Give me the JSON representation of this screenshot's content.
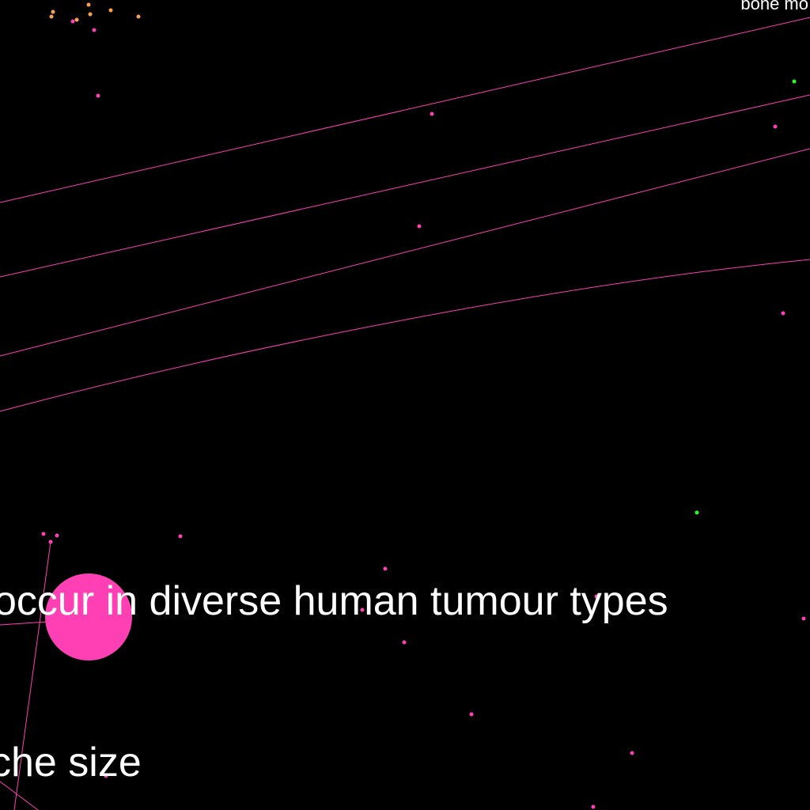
{
  "labels": {
    "corner_label": "bone mo",
    "main_phrase": "occur in diverse human tumour types",
    "lower_phrase": "che size"
  },
  "colors": {
    "background": "#000000",
    "edge": "#ff3fb4",
    "node_pink": "#ff3fb4",
    "node_orange": "#ff9f4a",
    "node_green": "#22ff22",
    "text": "#ffffff"
  }
}
